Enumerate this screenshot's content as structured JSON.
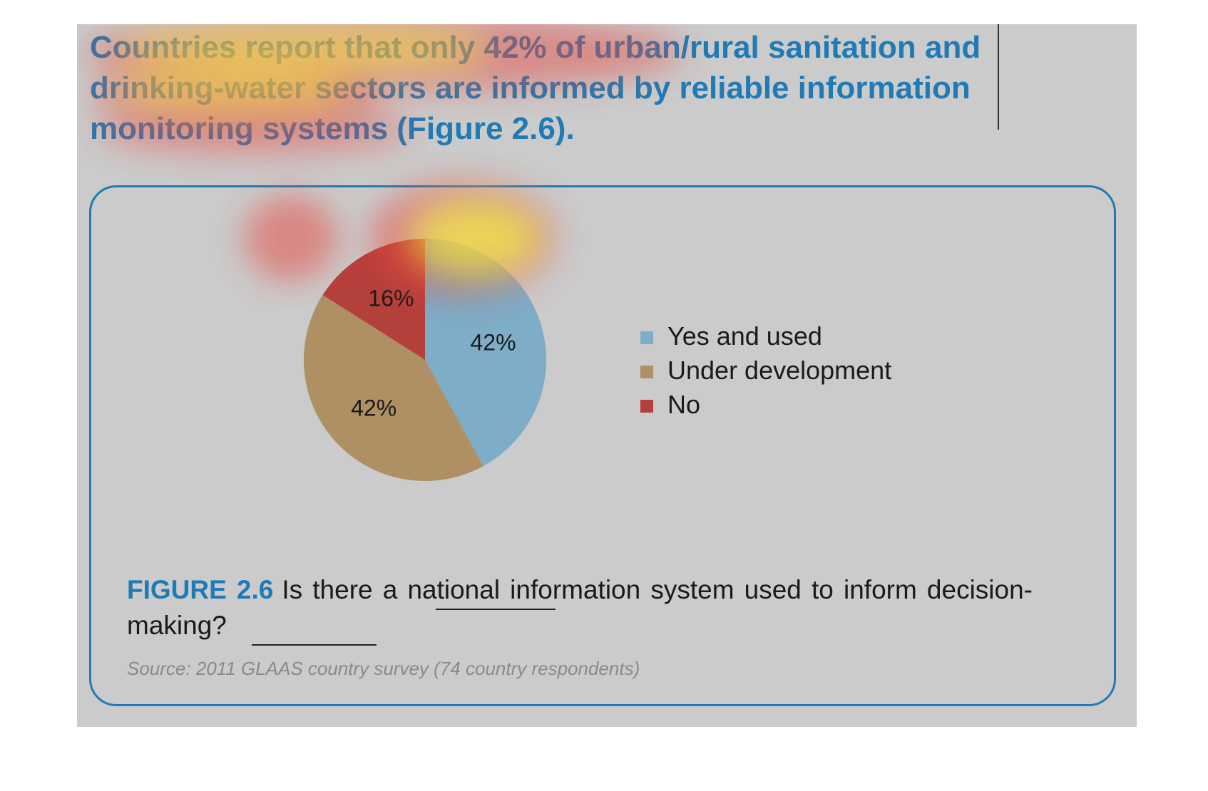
{
  "headline": "Countries report that only 42% of urban/rural sanitation and drinking-water sectors are informed by reliable information monitoring systems (Figure 2.6).",
  "colors": {
    "accent": "#1f7bb5",
    "background": "#cbcbcb"
  },
  "chart_data": {
    "type": "pie",
    "slices": [
      {
        "name": "Yes and used",
        "value": 42,
        "label": "42%",
        "color": "#7eadc8"
      },
      {
        "name": "Under development",
        "value": 42,
        "label": "42%",
        "color": "#ae9064"
      },
      {
        "name": "No",
        "value": 16,
        "label": "16%",
        "color": "#b4403c"
      }
    ],
    "legend_position": "right"
  },
  "legend": {
    "items": [
      {
        "label": "Yes and used",
        "color": "#7eadc8"
      },
      {
        "label": "Under development",
        "color": "#ae9064"
      },
      {
        "label": "No",
        "color": "#b4403c"
      }
    ]
  },
  "figure": {
    "label": "FIGURE 2.6",
    "caption": "Is there a national information system used to inform decision-making?",
    "source": "Source: 2011 GLAAS country survey (74 country respondents)"
  }
}
